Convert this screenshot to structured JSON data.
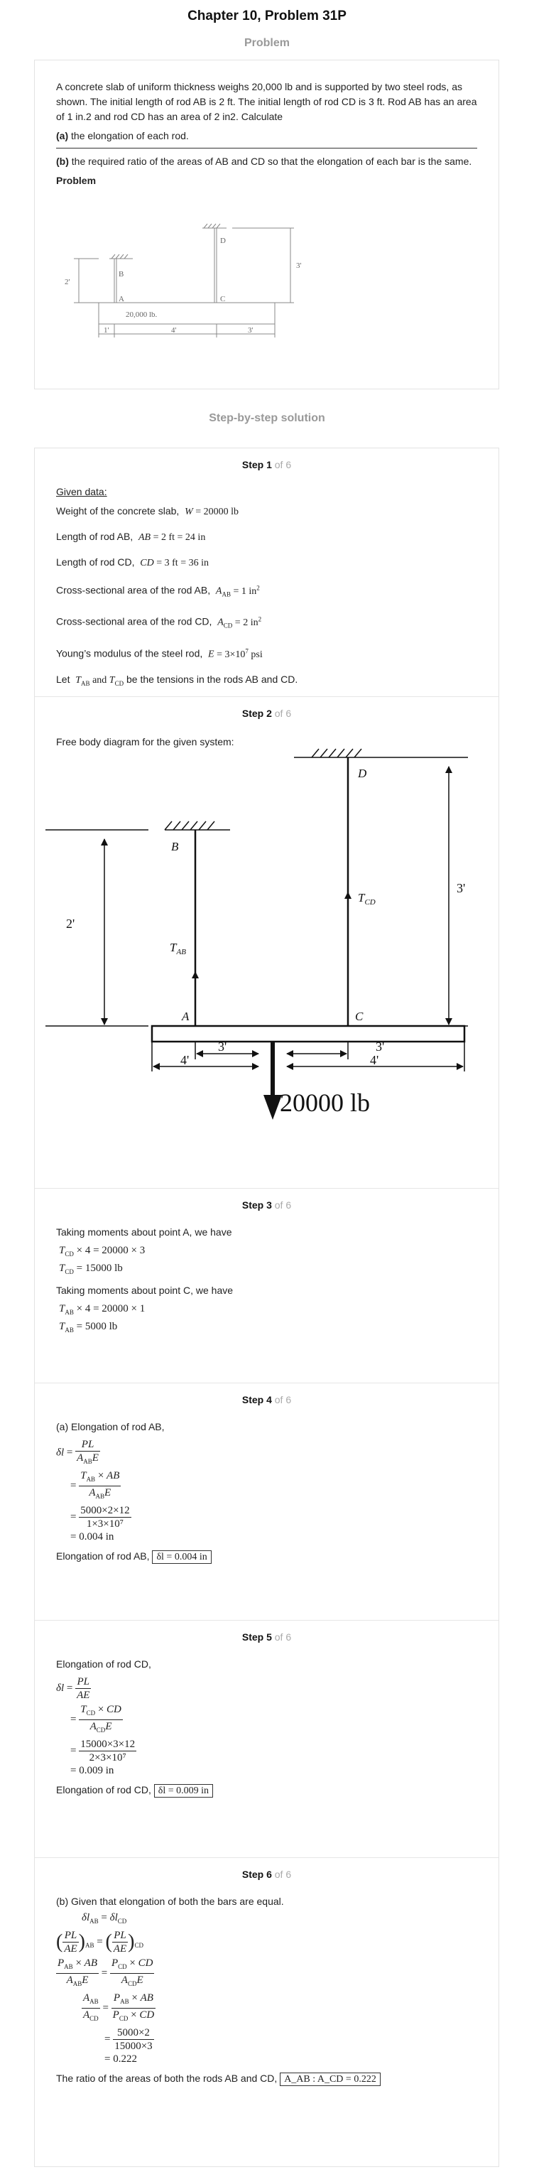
{
  "header": {
    "title": "Chapter 10, Problem 31P",
    "problem_section": "Problem",
    "solution_section": "Step-by-step solution"
  },
  "problem": {
    "text_1": "A concrete slab of uniform thickness weighs 20,000 lb and is supported by two steel rods, as shown. The initial length of rod AB is 2 ft. The initial length of rod CD is 3 ft. Rod AB has an area of 1 in.2 and rod CD has an area of 2 in2. Calculate",
    "part_a_label": "(a)",
    "part_a": "the elongation of each rod.",
    "part_b_label": "(b)",
    "part_b": "the required ratio of the areas of AB and CD so that the elongation of each bar is the same.",
    "figure_label": "Problem",
    "figure": {
      "label_D": "D",
      "label_B": "B",
      "label_A": "A",
      "label_C": "C",
      "dim_2": "2'",
      "dim_3": "3'",
      "load": "20,000 lb.",
      "dim_1": "1'",
      "dim_4": "4'",
      "dim_3b": "3'"
    }
  },
  "steps_meta": {
    "of_text": "of 6"
  },
  "step1": {
    "label": "Step 1",
    "given": "Given data:",
    "rows": [
      {
        "text": "Weight of the concrete slab,",
        "math": "W = 20000 lb"
      },
      {
        "text": "Length of rod AB,",
        "math": "AB = 2 ft = 24 in"
      },
      {
        "text": "Length of rod CD,",
        "math": "CD = 3 ft = 36 in"
      },
      {
        "text": "Cross-sectional area of the rod AB,",
        "math": "A_AB = 1 in²"
      },
      {
        "text": "Cross-sectional area of the rod CD,",
        "math": "A_CD = 2 in²"
      },
      {
        "text": "Young’s modulus of the steel rod,",
        "math": "E = 3×10⁷ psi"
      }
    ],
    "let_prefix": "Let",
    "let_math": "T_AB and T_CD",
    "let_suffix": "be the tensions in the rods AB and CD."
  },
  "step2": {
    "label": "Step 2",
    "intro": "Free body diagram for the given system:",
    "fbd": {
      "D": "D",
      "B": "B",
      "A": "A",
      "C": "C",
      "h_left": "2'",
      "h_right": "3'",
      "T_AB": "T",
      "T_AB_sub": "AB",
      "T_CD": "T",
      "T_CD_sub": "CD",
      "d1": "3'",
      "d2": "4'",
      "d3": "3'",
      "d4": "4'",
      "load": "20000 lb"
    }
  },
  "step3": {
    "label": "Step 3",
    "line1": "Taking moments about point A, we have",
    "eq1": "T_CD × 4 = 20000 × 3",
    "eq2": "T_CD = 15000 lb",
    "line2": "Taking moments about point C, we have",
    "eq3": "T_AB × 4 = 20000 × 1",
    "eq4": "T_AB = 5000 lb"
  },
  "step4": {
    "label": "Step 4",
    "intro": "(a) Elongation of rod AB,",
    "result_text": "Elongation of rod AB,",
    "result_box": "δl = 0.004 in",
    "final": "= 0.004 in",
    "num3": "5000×2×12",
    "den3": "1×3×10⁷"
  },
  "step5": {
    "label": "Step 5",
    "intro": "Elongation of rod CD,",
    "result_text": "Elongation of rod CD,",
    "result_box": "δl = 0.009 in",
    "final": "= 0.009 in",
    "num3": "15000×3×12",
    "den3": "2×3×10⁷"
  },
  "step6": {
    "label": "Step 6",
    "intro": "(b) Given that elongation of both the bars are equal.",
    "num_last": "5000×2",
    "den_last": "15000×3",
    "final": "= 0.222",
    "result_text": "The ratio of the areas of both the rods AB and CD,",
    "result_box": "A_AB : A_CD = 0.222"
  }
}
